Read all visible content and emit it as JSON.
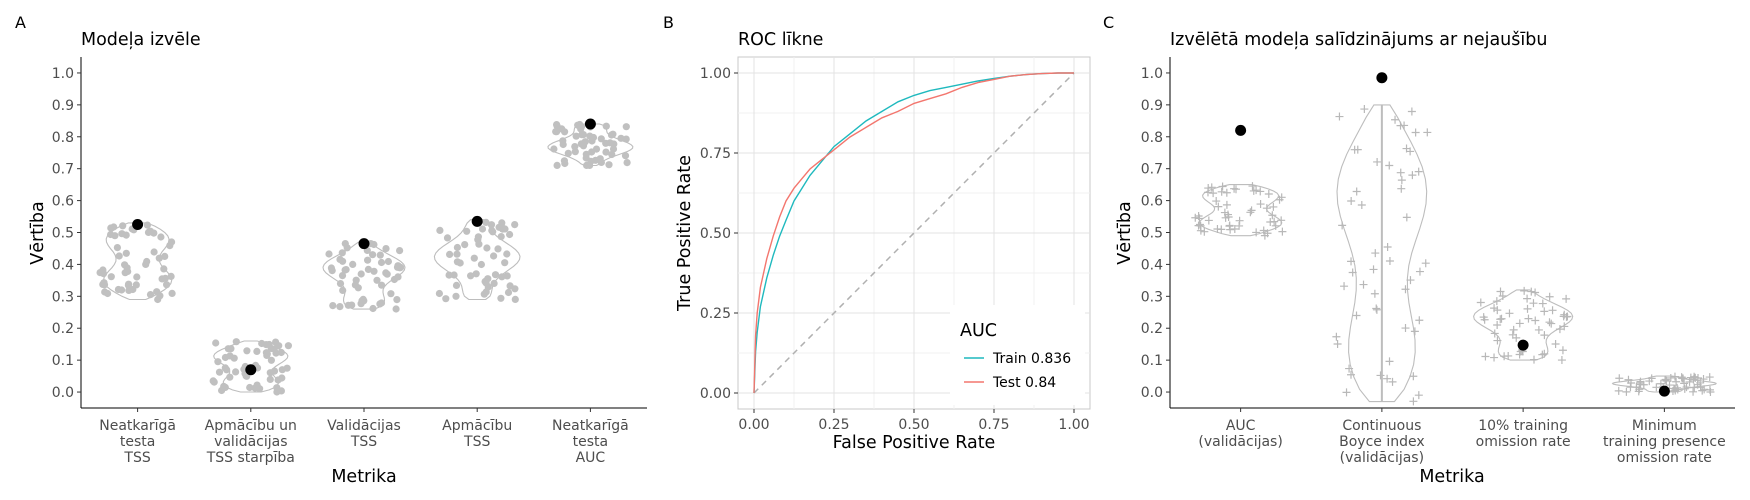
{
  "chart_data": [
    {
      "tag": "A",
      "type": "violin",
      "title": "Modeļa izvēle",
      "xlabel": "Metrika",
      "ylabel": "Vērtība",
      "ylim": [
        0.0,
        1.0
      ],
      "yticks": [
        "0.0",
        "0.1",
        "0.2",
        "0.3",
        "0.4",
        "0.5",
        "0.6",
        "0.7",
        "0.8",
        "0.9",
        "1.0"
      ],
      "categories": [
        [
          "Neatkarīgā",
          "testa",
          "TSS"
        ],
        [
          "Apmācību un",
          "validācijas",
          "TSS starpība"
        ],
        [
          "Validācijas",
          "TSS"
        ],
        [
          "Apmācību",
          "TSS"
        ],
        [
          "Neatkarīgā",
          "testa",
          "AUC"
        ]
      ],
      "distribution_ranges": [
        [
          0.29,
          0.53
        ],
        [
          0.0,
          0.16
        ],
        [
          0.26,
          0.47
        ],
        [
          0.29,
          0.54
        ],
        [
          0.71,
          0.84
        ]
      ],
      "selected_model_values": [
        0.525,
        0.07,
        0.465,
        0.535,
        0.84
      ]
    },
    {
      "tag": "B",
      "type": "line",
      "title": "ROC līkne",
      "xlabel": "False Positive Rate",
      "ylabel": "True Positive Rate",
      "xlim": [
        0,
        1
      ],
      "ylim": [
        0,
        1
      ],
      "xticks": [
        "0.00",
        "0.25",
        "0.50",
        "0.75",
        "1.00"
      ],
      "yticks": [
        "0.00",
        "0.25",
        "0.50",
        "0.75",
        "1.00"
      ],
      "legend_title": "AUC",
      "legend_position": "bottom-right",
      "series": [
        {
          "name": "Train 0.836",
          "color": "#1fb9be",
          "x": [
            0,
            0.005,
            0.01,
            0.02,
            0.04,
            0.06,
            0.08,
            0.1,
            0.125,
            0.15,
            0.175,
            0.2,
            0.25,
            0.3,
            0.35,
            0.4,
            0.45,
            0.5,
            0.55,
            0.6,
            0.65,
            0.7,
            0.75,
            0.8,
            0.85,
            0.9,
            0.95,
            1.0
          ],
          "y": [
            0,
            0.13,
            0.19,
            0.27,
            0.36,
            0.43,
            0.49,
            0.54,
            0.6,
            0.64,
            0.68,
            0.71,
            0.77,
            0.81,
            0.85,
            0.88,
            0.91,
            0.93,
            0.945,
            0.955,
            0.965,
            0.975,
            0.983,
            0.99,
            0.995,
            0.998,
            1.0,
            1.0
          ]
        },
        {
          "name": "Test 0.84",
          "color": "#f3766e",
          "x": [
            0,
            0.005,
            0.01,
            0.02,
            0.04,
            0.06,
            0.08,
            0.1,
            0.125,
            0.15,
            0.175,
            0.2,
            0.25,
            0.3,
            0.35,
            0.4,
            0.45,
            0.5,
            0.55,
            0.6,
            0.65,
            0.7,
            0.75,
            0.8,
            0.85,
            0.9,
            0.95,
            1.0
          ],
          "y": [
            0,
            0.18,
            0.25,
            0.33,
            0.42,
            0.49,
            0.55,
            0.6,
            0.64,
            0.67,
            0.7,
            0.72,
            0.76,
            0.8,
            0.83,
            0.86,
            0.88,
            0.905,
            0.92,
            0.935,
            0.955,
            0.97,
            0.98,
            0.99,
            0.995,
            0.998,
            1.0,
            1.0
          ]
        }
      ],
      "reference_line": {
        "x": [
          0,
          1
        ],
        "y": [
          0,
          1
        ],
        "style": "dashed"
      }
    },
    {
      "tag": "C",
      "type": "violin",
      "title": "Izvēlētā modeļa salīdzinājums ar nejaušību",
      "xlabel": "Metrika",
      "ylabel": "Vērtība",
      "ylim": [
        0.0,
        1.0
      ],
      "yticks": [
        "0.0",
        "0.1",
        "0.2",
        "0.3",
        "0.4",
        "0.5",
        "0.6",
        "0.7",
        "0.8",
        "0.9",
        "1.0"
      ],
      "categories": [
        [
          "AUC",
          "(validācijas)"
        ],
        [
          "Continuous",
          "Boyce index",
          "(validācijas)"
        ],
        [
          "10% training",
          "omission rate"
        ],
        [
          "Minimum",
          "training presence",
          "omission rate"
        ]
      ],
      "distribution_ranges": [
        [
          0.49,
          0.65
        ],
        [
          -0.03,
          0.9
        ],
        [
          0.1,
          0.32
        ],
        [
          0.0,
          0.05
        ]
      ],
      "selected_model_values": [
        0.82,
        0.985,
        0.147,
        0.003
      ]
    }
  ]
}
